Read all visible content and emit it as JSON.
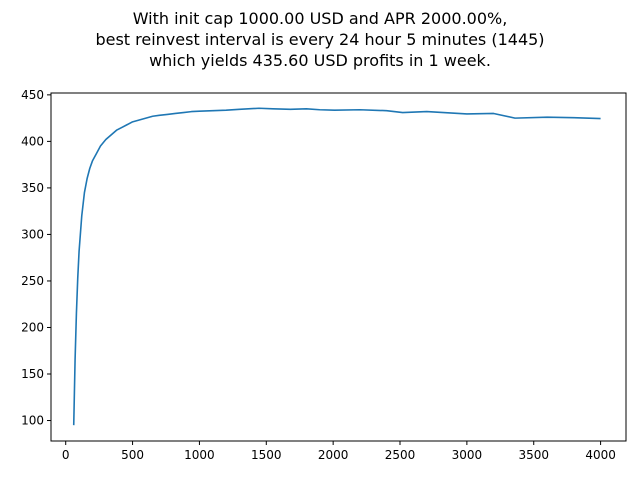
{
  "chart_data": {
    "type": "line",
    "title_lines": [
      "With init cap 1000.00 USD and APR 2000.00%,",
      "best reinvest interval is every 24 hour 5 minutes (1445)",
      "which yields 435.60 USD profits in 1 week."
    ],
    "xlabel": "",
    "ylabel": "",
    "xlim": [
      -110,
      4190
    ],
    "ylim": [
      78,
      452
    ],
    "x_ticks": [
      0,
      500,
      1000,
      1500,
      2000,
      2500,
      3000,
      3500,
      4000
    ],
    "y_ticks": [
      100,
      150,
      200,
      250,
      300,
      350,
      400,
      450
    ],
    "grid": false,
    "line_color": "#1f77b4",
    "series": [
      {
        "x": [
          60,
          65,
          70,
          80,
          90,
          100,
          120,
          140,
          160,
          180,
          200,
          230,
          260,
          300,
          340,
          380,
          420,
          460,
          500,
          550,
          600,
          650,
          700,
          760,
          820,
          880,
          940,
          1000,
          1100,
          1200,
          1300,
          1445,
          1550,
          1680,
          1800,
          1900,
          2010,
          2200,
          2400,
          2520,
          2700,
          3000,
          3200,
          3360,
          3600,
          3800,
          4000
        ],
        "y": [
          95,
          130,
          165,
          215,
          253,
          282,
          320,
          345,
          360,
          371,
          379,
          387,
          395,
          402,
          407,
          412,
          415,
          418,
          421,
          423,
          425,
          427,
          428,
          429,
          430,
          431,
          432,
          432.5,
          433,
          433.5,
          434.5,
          435.6,
          435,
          434.5,
          435,
          434,
          433.5,
          434,
          433,
          431,
          432,
          429.5,
          430,
          425,
          426,
          425.5,
          424.5
        ]
      }
    ]
  }
}
